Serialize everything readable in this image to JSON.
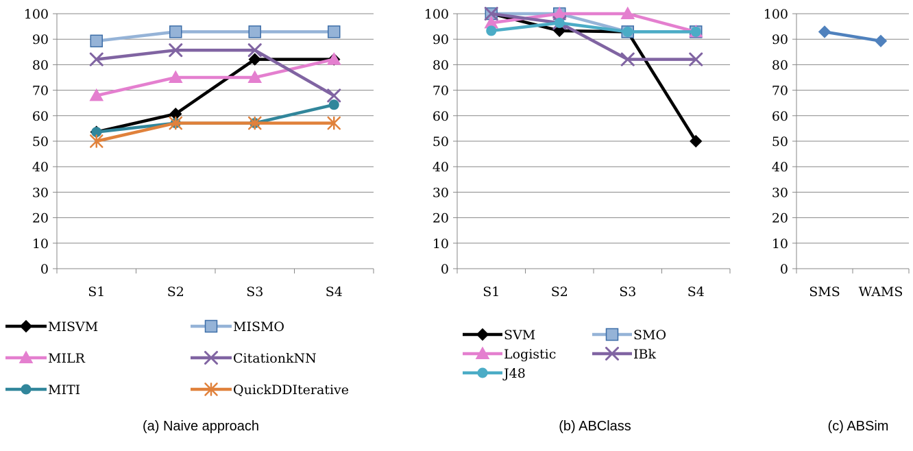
{
  "chart_data": [
    {
      "type": "line",
      "caption": "(a) Naive approach",
      "categories": [
        "S1",
        "S2",
        "S3",
        "S4"
      ],
      "ylim": [
        0,
        100
      ],
      "yticks": [
        0,
        10,
        20,
        30,
        40,
        50,
        60,
        70,
        80,
        90,
        100
      ],
      "grid": true,
      "legend_position": "bottom",
      "series": [
        {
          "name": "MISVM",
          "values": [
            53.6,
            60.7,
            82.1,
            82.1
          ],
          "color": "#000000",
          "marker": "diamond"
        },
        {
          "name": "MISMO",
          "values": [
            89.3,
            92.9,
            92.9,
            92.9
          ],
          "color": "#95b3d7",
          "marker": "square"
        },
        {
          "name": "MILR",
          "values": [
            67.9,
            75.0,
            75.0,
            82.1
          ],
          "color": "#e47fcf",
          "marker": "triangle"
        },
        {
          "name": "CitationkNN",
          "values": [
            82.1,
            85.7,
            85.7,
            67.9
          ],
          "color": "#8064a2",
          "marker": "x"
        },
        {
          "name": "MITI",
          "values": [
            53.6,
            57.1,
            57.1,
            64.3
          ],
          "color": "#31869b",
          "marker": "circle"
        },
        {
          "name": "QuickDDIterative",
          "values": [
            50.0,
            57.1,
            57.1,
            57.1
          ],
          "color": "#e0813b",
          "marker": "star"
        }
      ]
    },
    {
      "type": "line",
      "caption": "(b) ABClass",
      "categories": [
        "S1",
        "S2",
        "S3",
        "S4"
      ],
      "ylim": [
        0,
        100
      ],
      "yticks": [
        0,
        10,
        20,
        30,
        40,
        50,
        60,
        70,
        80,
        90,
        100
      ],
      "grid": true,
      "legend_position": "bottom",
      "series": [
        {
          "name": "SVM",
          "values": [
            100,
            93.3,
            92.9,
            50.0
          ],
          "color": "#000000",
          "marker": "diamond"
        },
        {
          "name": "SMO",
          "values": [
            100,
            100,
            92.9,
            92.9
          ],
          "color": "#95b3d7",
          "marker": "square"
        },
        {
          "name": "Logistic",
          "values": [
            96.4,
            100,
            100,
            92.9
          ],
          "color": "#e47fcf",
          "marker": "triangle"
        },
        {
          "name": "IBk",
          "values": [
            100,
            96.4,
            82.1,
            82.1
          ],
          "color": "#8064a2",
          "marker": "x"
        },
        {
          "name": "J48",
          "values": [
            93.3,
            96.4,
            92.9,
            92.9
          ],
          "color": "#4bacc6",
          "marker": "circle"
        }
      ]
    },
    {
      "type": "line",
      "caption": "(c) ABSim",
      "categories": [
        "SMS",
        "WAMS"
      ],
      "ylim": [
        0,
        100
      ],
      "yticks": [
        0,
        10,
        20,
        30,
        40,
        50,
        60,
        70,
        80,
        90,
        100
      ],
      "grid": true,
      "series": [
        {
          "values": [
            92.9,
            89.3
          ],
          "color": "#4f81bd",
          "marker": "diamond"
        }
      ]
    }
  ]
}
